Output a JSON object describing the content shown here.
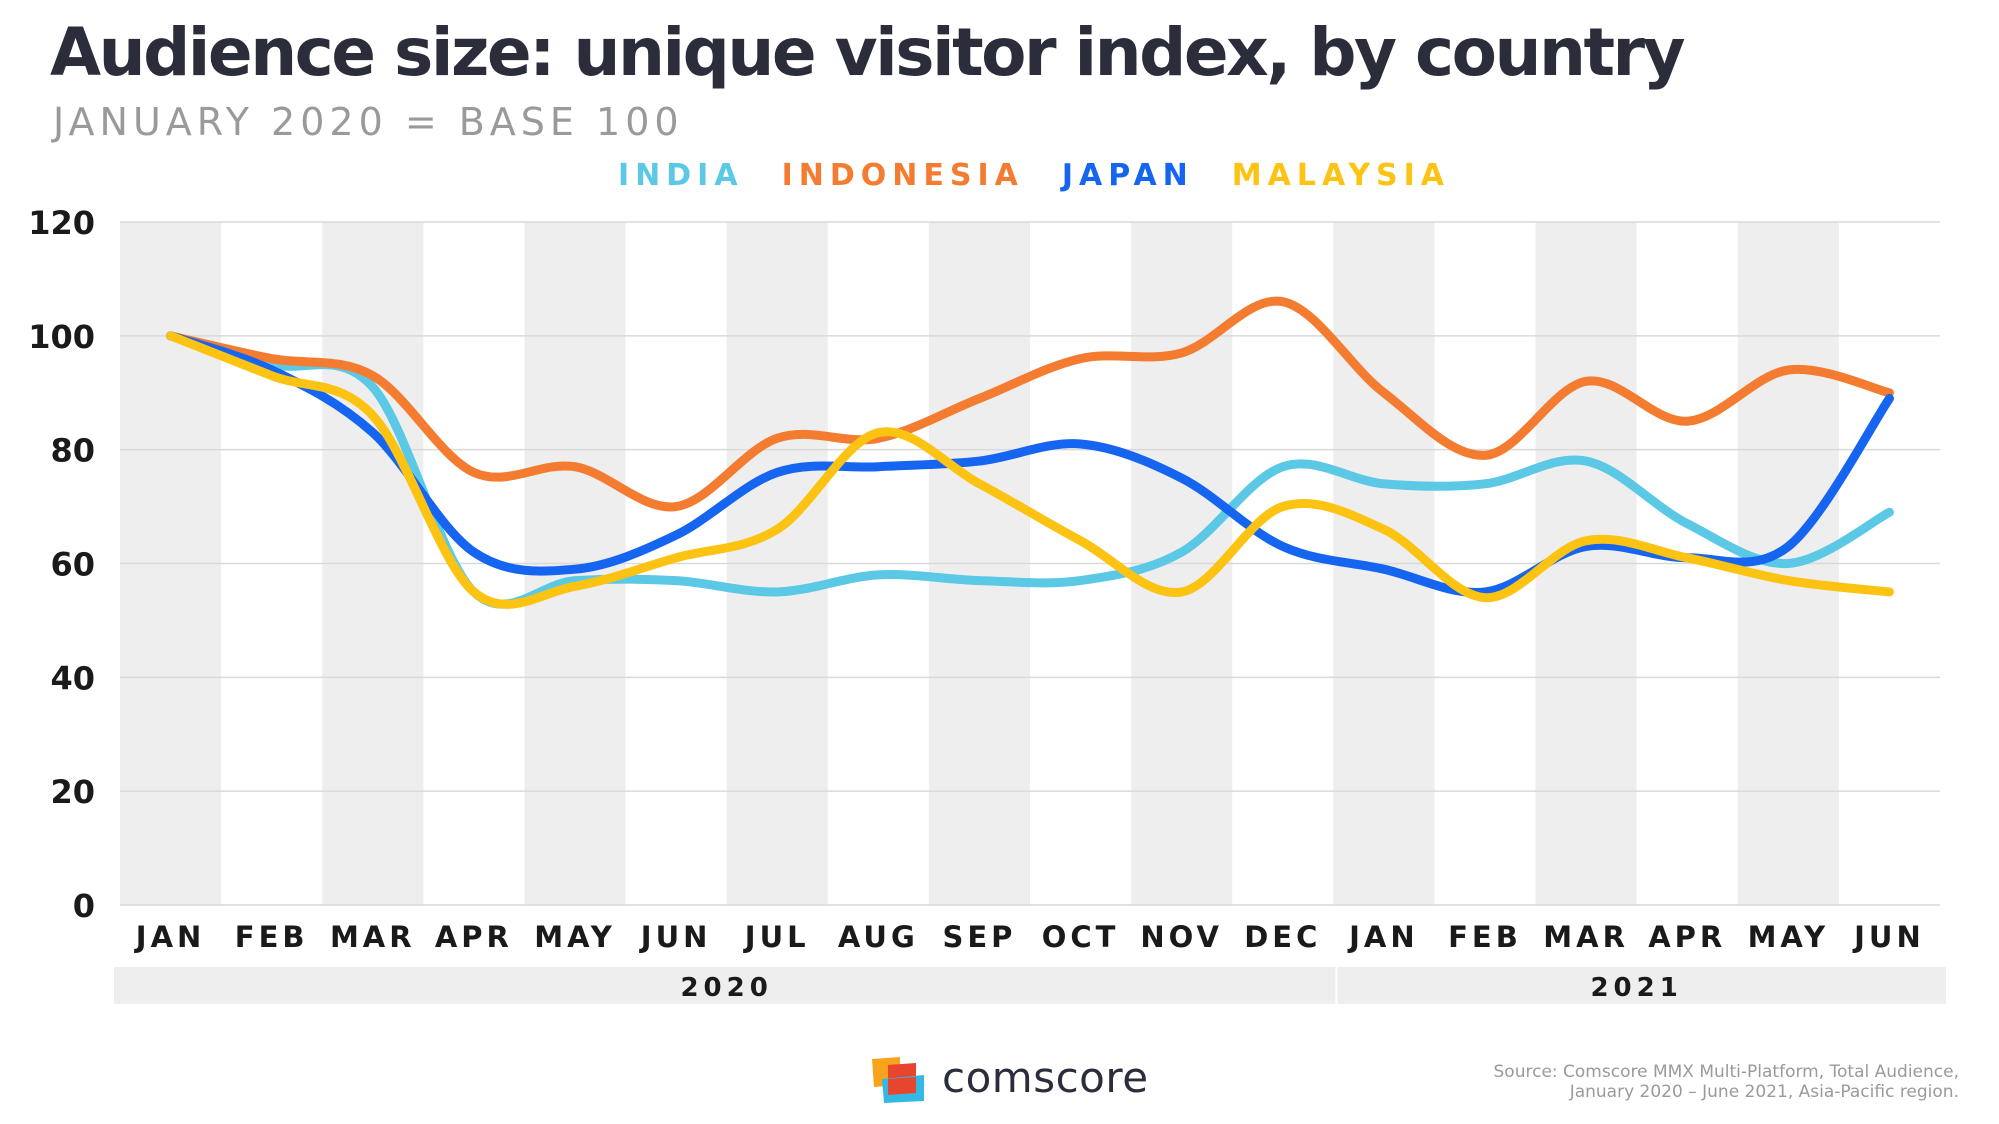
{
  "chart_data": {
    "type": "line",
    "title": "Audience size: unique visitor index, by country",
    "subtitle": "JANUARY 2020 = BASE 100",
    "categories": [
      "JAN",
      "FEB",
      "MAR",
      "APR",
      "MAY",
      "JUN",
      "JUL",
      "AUG",
      "SEP",
      "OCT",
      "NOV",
      "DEC",
      "JAN",
      "FEB",
      "MAR",
      "APR",
      "MAY",
      "JUN"
    ],
    "year_groups": [
      {
        "label": "2020",
        "start": 0,
        "end": 11
      },
      {
        "label": "2021",
        "start": 12,
        "end": 17
      }
    ],
    "ylim": [
      0,
      120
    ],
    "yticks": [
      0,
      20,
      40,
      60,
      80,
      100,
      120
    ],
    "xlabel": "",
    "ylabel": "",
    "grid": true,
    "legend_position": "top",
    "series": [
      {
        "name": "INDIA",
        "color": "#5bc8e6",
        "values": [
          100,
          95,
          91,
          55,
          57,
          57,
          55,
          58,
          57,
          57,
          62,
          77,
          74,
          74,
          78,
          67,
          60,
          69
        ]
      },
      {
        "name": "INDONESIA",
        "color": "#f47c30",
        "values": [
          100,
          96,
          93,
          76,
          77,
          70,
          82,
          82,
          89,
          96,
          97,
          106,
          90,
          79,
          92,
          85,
          94,
          90
        ]
      },
      {
        "name": "JAPAN",
        "color": "#1565f0",
        "values": [
          100,
          94,
          83,
          62,
          59,
          65,
          76,
          77,
          78,
          81,
          75,
          63,
          59,
          55,
          63,
          61,
          63,
          89
        ]
      },
      {
        "name": "MALAYSIA",
        "color": "#fcc313",
        "values": [
          100,
          93,
          86,
          55,
          56,
          61,
          66,
          83,
          74,
          64,
          55,
          70,
          66,
          54,
          64,
          61,
          57,
          55
        ]
      }
    ]
  },
  "colors": {
    "band": "#eeeeee",
    "grid": "#d9d9d9",
    "axis_text": "#1a1a1a",
    "title": "#2b2e3a"
  },
  "brand": {
    "logo_text": "comscore"
  },
  "source": {
    "line1": "Source: Comscore MMX Multi-Platform, Total Audience,",
    "line2": "January 2020 – June 2021, Asia-Pacific region."
  }
}
